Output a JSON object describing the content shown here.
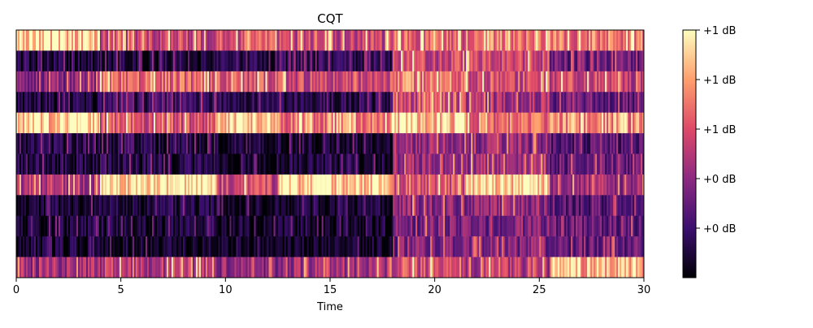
{
  "chart_data": {
    "type": "heatmap",
    "title": "CQT",
    "xlabel": "Time",
    "ylabel": "",
    "xlim": [
      0,
      30
    ],
    "x_ticks": [
      0,
      5,
      10,
      15,
      20,
      25,
      30
    ],
    "y_ticks": [],
    "row_count": 12,
    "colormap": [
      "#000004",
      "#3b0f70",
      "#8c2981",
      "#de4968",
      "#fe9f6d",
      "#fcfdbf"
    ],
    "colorbar": {
      "tick_labels": [
        "+0 dB",
        "+0 dB",
        "+1 dB",
        "+1 dB",
        "+1 dB"
      ],
      "tick_levels": [
        0.2,
        0.4,
        0.6,
        0.8,
        1.0
      ]
    },
    "segments": [
      {
        "x_start": 0.0,
        "x_end": 4.0,
        "rows": [
          0.9,
          0.1,
          0.4,
          0.12,
          0.92,
          0.12,
          0.1,
          0.5,
          0.08,
          0.08,
          0.06,
          0.45
        ]
      },
      {
        "x_start": 4.0,
        "x_end": 9.5,
        "rows": [
          0.55,
          0.12,
          0.65,
          0.18,
          0.6,
          0.1,
          0.12,
          0.95,
          0.1,
          0.08,
          0.06,
          0.5
        ]
      },
      {
        "x_start": 9.5,
        "x_end": 12.5,
        "rows": [
          0.6,
          0.12,
          0.6,
          0.15,
          0.9,
          0.1,
          0.08,
          0.55,
          0.06,
          0.06,
          0.05,
          0.4
        ]
      },
      {
        "x_start": 12.5,
        "x_end": 18.0,
        "rows": [
          0.55,
          0.15,
          0.55,
          0.15,
          0.7,
          0.08,
          0.08,
          0.92,
          0.08,
          0.05,
          0.05,
          0.45
        ]
      },
      {
        "x_start": 18.0,
        "x_end": 21.5,
        "rows": [
          0.65,
          0.55,
          0.7,
          0.55,
          0.9,
          0.45,
          0.45,
          0.6,
          0.4,
          0.35,
          0.35,
          0.55
        ]
      },
      {
        "x_start": 21.5,
        "x_end": 25.5,
        "rows": [
          0.7,
          0.55,
          0.6,
          0.45,
          0.65,
          0.4,
          0.45,
          0.92,
          0.4,
          0.35,
          0.35,
          0.5
        ]
      },
      {
        "x_start": 25.5,
        "x_end": 30.0,
        "rows": [
          0.7,
          0.3,
          0.55,
          0.3,
          0.75,
          0.25,
          0.3,
          0.45,
          0.25,
          0.3,
          0.3,
          0.85
        ]
      }
    ]
  }
}
